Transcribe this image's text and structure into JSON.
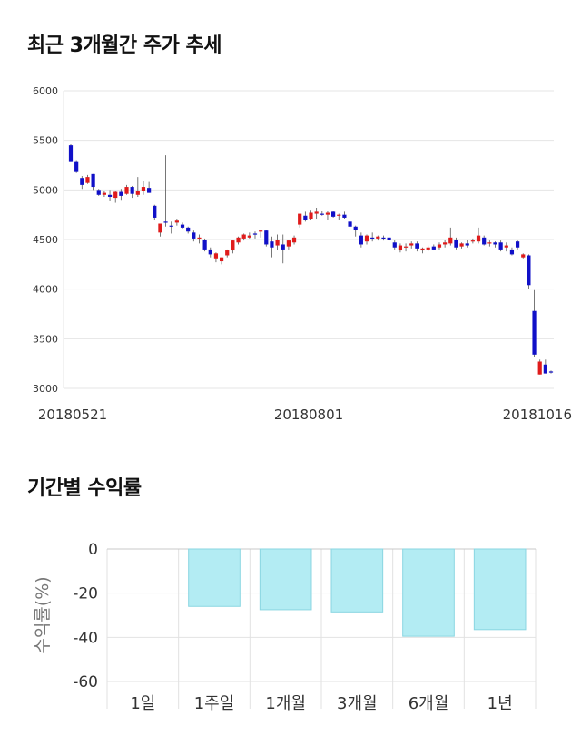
{
  "section1": {
    "title": "최근 3개월간 주가 추세"
  },
  "section2": {
    "title": "기간별 수익률"
  },
  "chart_data": [
    {
      "type": "candlestick",
      "title": "최근 3개월간 주가 추세",
      "y_ticks": [
        "6000",
        "5500",
        "5000",
        "4500",
        "4000",
        "3500",
        "3000"
      ],
      "ylim": [
        3000,
        6000
      ],
      "x_labels": [
        "20180521",
        "20180801",
        "20181016"
      ],
      "grid": true,
      "colors": {
        "up": "#e01b1b",
        "down": "#1010c8"
      },
      "candles": [
        [
          5450,
          5460,
          5290,
          5290
        ],
        [
          5290,
          5300,
          5170,
          5180
        ],
        [
          5120,
          5140,
          5010,
          5050
        ],
        [
          5070,
          5150,
          5060,
          5130
        ],
        [
          5160,
          5160,
          5000,
          5030
        ],
        [
          5000,
          5010,
          4940,
          4950
        ],
        [
          4950,
          4990,
          4930,
          4970
        ],
        [
          4950,
          5000,
          4890,
          4930
        ],
        [
          4920,
          4990,
          4870,
          4980
        ],
        [
          4980,
          5010,
          4900,
          4940
        ],
        [
          4960,
          5050,
          4950,
          5030
        ],
        [
          5030,
          5040,
          4920,
          4960
        ],
        [
          4950,
          5130,
          4930,
          4990
        ],
        [
          4990,
          5090,
          4950,
          5030
        ],
        [
          5020,
          5080,
          4970,
          4970
        ],
        [
          4840,
          4850,
          4700,
          4720
        ],
        [
          4570,
          4650,
          4530,
          4660
        ],
        [
          4680,
          5350,
          4630,
          4670
        ],
        [
          4640,
          4680,
          4560,
          4630
        ],
        [
          4670,
          4710,
          4640,
          4690
        ],
        [
          4650,
          4670,
          4610,
          4620
        ],
        [
          4620,
          4630,
          4560,
          4580
        ],
        [
          4570,
          4590,
          4480,
          4510
        ],
        [
          4510,
          4550,
          4460,
          4520
        ],
        [
          4500,
          4510,
          4380,
          4400
        ],
        [
          4400,
          4420,
          4320,
          4350
        ],
        [
          4310,
          4370,
          4270,
          4360
        ],
        [
          4280,
          4320,
          4250,
          4320
        ],
        [
          4340,
          4400,
          4320,
          4390
        ],
        [
          4390,
          4500,
          4360,
          4490
        ],
        [
          4470,
          4530,
          4450,
          4520
        ],
        [
          4510,
          4560,
          4490,
          4550
        ],
        [
          4520,
          4570,
          4510,
          4540
        ],
        [
          4560,
          4580,
          4510,
          4550
        ],
        [
          4590,
          4600,
          4520,
          4590
        ],
        [
          4590,
          4600,
          4430,
          4450
        ],
        [
          4480,
          4530,
          4320,
          4420
        ],
        [
          4440,
          4550,
          4390,
          4500
        ],
        [
          4450,
          4550,
          4260,
          4400
        ],
        [
          4430,
          4500,
          4400,
          4490
        ],
        [
          4470,
          4540,
          4450,
          4520
        ],
        [
          4650,
          4760,
          4620,
          4760
        ],
        [
          4740,
          4780,
          4680,
          4700
        ],
        [
          4710,
          4800,
          4700,
          4770
        ],
        [
          4760,
          4820,
          4710,
          4780
        ],
        [
          4760,
          4790,
          4740,
          4750
        ],
        [
          4750,
          4790,
          4700,
          4770
        ],
        [
          4780,
          4790,
          4720,
          4730
        ],
        [
          4740,
          4760,
          4700,
          4750
        ],
        [
          4750,
          4780,
          4710,
          4720
        ],
        [
          4680,
          4690,
          4610,
          4630
        ],
        [
          4630,
          4640,
          4530,
          4600
        ],
        [
          4540,
          4570,
          4420,
          4450
        ],
        [
          4480,
          4550,
          4450,
          4540
        ],
        [
          4520,
          4570,
          4480,
          4510
        ],
        [
          4510,
          4540,
          4490,
          4530
        ],
        [
          4520,
          4540,
          4490,
          4510
        ],
        [
          4520,
          4530,
          4480,
          4500
        ],
        [
          4470,
          4490,
          4400,
          4420
        ],
        [
          4390,
          4460,
          4370,
          4440
        ],
        [
          4420,
          4460,
          4380,
          4430
        ],
        [
          4440,
          4480,
          4410,
          4460
        ],
        [
          4460,
          4480,
          4380,
          4410
        ],
        [
          4390,
          4420,
          4360,
          4410
        ],
        [
          4400,
          4440,
          4380,
          4420
        ],
        [
          4430,
          4450,
          4390,
          4400
        ],
        [
          4420,
          4470,
          4400,
          4450
        ],
        [
          4450,
          4500,
          4420,
          4470
        ],
        [
          4460,
          4620,
          4440,
          4520
        ],
        [
          4500,
          4520,
          4400,
          4420
        ],
        [
          4430,
          4470,
          4410,
          4460
        ],
        [
          4460,
          4500,
          4420,
          4440
        ],
        [
          4480,
          4510,
          4460,
          4490
        ],
        [
          4480,
          4620,
          4460,
          4540
        ],
        [
          4520,
          4540,
          4440,
          4450
        ],
        [
          4460,
          4490,
          4430,
          4470
        ],
        [
          4470,
          4480,
          4420,
          4450
        ],
        [
          4470,
          4490,
          4380,
          4400
        ],
        [
          4420,
          4470,
          4380,
          4440
        ],
        [
          4400,
          4420,
          4340,
          4350
        ],
        [
          4480,
          4500,
          4400,
          4420
        ],
        [
          4320,
          4360,
          4310,
          4350
        ],
        [
          4340,
          4350,
          4000,
          4040
        ],
        [
          3780,
          3990,
          3320,
          3340
        ],
        [
          3140,
          3290,
          3140,
          3270
        ],
        [
          3240,
          3290,
          3150,
          3150
        ],
        [
          3170,
          3180,
          3150,
          3160
        ]
      ]
    },
    {
      "type": "bar",
      "title": "기간별 수익률",
      "categories": [
        "1일",
        "1주일",
        "1개월",
        "3개월",
        "6개월",
        "1년"
      ],
      "values": [
        0,
        -26,
        -27.5,
        -28.5,
        -39.5,
        -36.5
      ],
      "ylabel": "수익률(%)",
      "y_ticks": [
        "0",
        "-20",
        "-40",
        "-60"
      ],
      "ylim": [
        -60,
        0
      ],
      "grid": true,
      "colors": {
        "bar": "#b3ecf3",
        "bar_edge": "#8ad6e2"
      }
    }
  ]
}
